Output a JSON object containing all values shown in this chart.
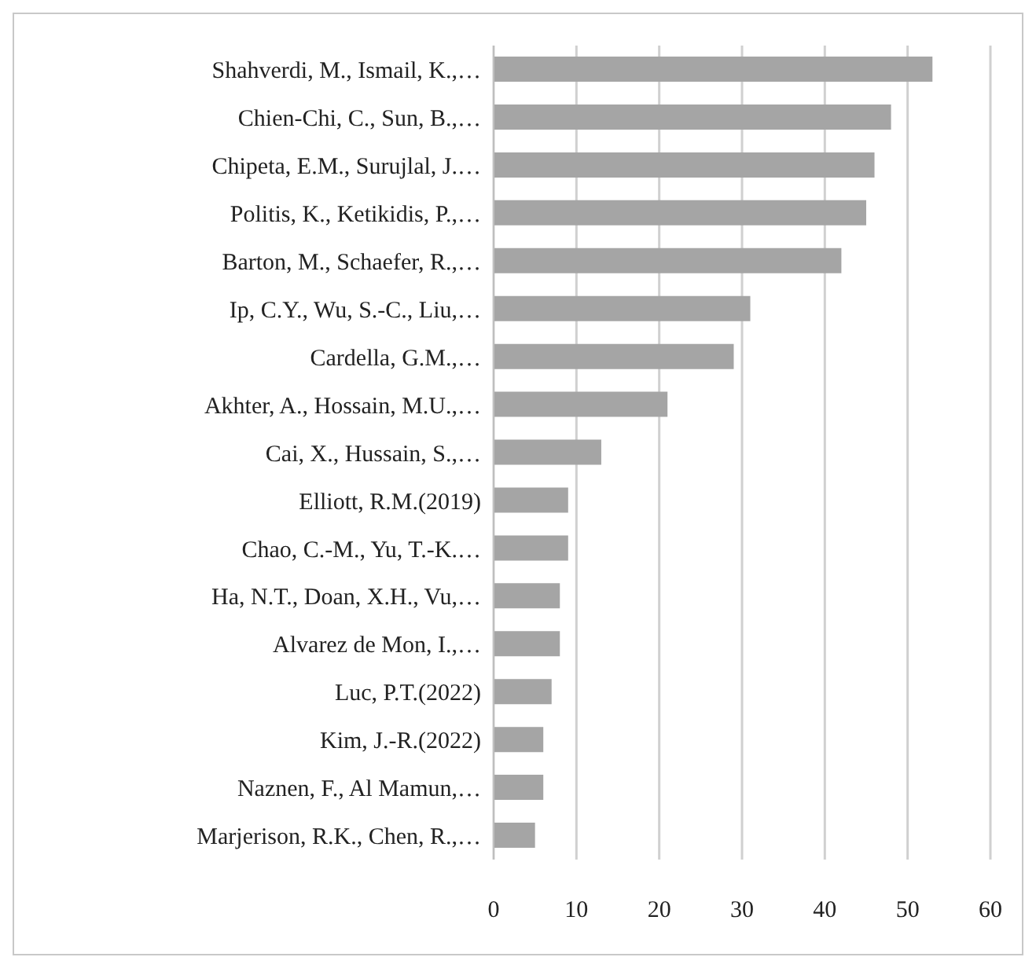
{
  "chart_data": {
    "type": "bar",
    "orientation": "horizontal",
    "categories": [
      "Shahverdi, M., Ismail, K.,…",
      "Chien-Chi, C., Sun, B.,…",
      "Chipeta, E.M., Surujlal, J.…",
      "Politis, K., Ketikidis, P.,…",
      "Barton, M., Schaefer, R.,…",
      "Ip, C.Y., Wu, S.-C., Liu,…",
      "Cardella, G.M.,…",
      "Akhter, A., Hossain, M.U.,…",
      "Cai, X., Hussain, S.,…",
      "Elliott, R.M.(2019)",
      "Chao, C.-M., Yu, T.-K.…",
      "Ha, N.T., Doan, X.H., Vu,…",
      "Alvarez de Mon, I.,…",
      "Luc, P.T.(2022)",
      "Kim, J.-R.(2022)",
      "Naznen, F., Al Mamun,…",
      "Marjerison, R.K., Chen, R.,…"
    ],
    "values": [
      53,
      48,
      46,
      45,
      42,
      31,
      29,
      21,
      13,
      9,
      9,
      8,
      8,
      7,
      6,
      6,
      5
    ],
    "color": "#a5a5a5",
    "xlim": [
      0,
      60
    ],
    "xticks": [
      0,
      10,
      20,
      30,
      40,
      50,
      60
    ],
    "grid": "x",
    "legend": false
  }
}
